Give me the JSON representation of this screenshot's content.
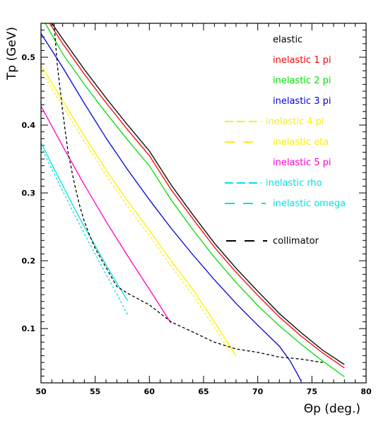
{
  "chart_data": {
    "type": "line",
    "xlabel": "Θp (deg.)",
    "ylabel": "Tp (GeV)",
    "xlim": [
      50,
      80
    ],
    "ylim": [
      0.02,
      0.55
    ],
    "xticks": [
      "50",
      "55",
      "60",
      "65",
      "70",
      "75",
      "80"
    ],
    "yticks": [
      "0.1",
      "0.2",
      "0.3",
      "0.4",
      "0.5"
    ],
    "legend_placement": "top-right",
    "series": [
      {
        "name": "elastic",
        "color": "#000000",
        "dash": "solid",
        "x": [
          51.0,
          52,
          54,
          56,
          58,
          60,
          62,
          64,
          66,
          68,
          70,
          72,
          74,
          76,
          78
        ],
        "y": [
          0.55,
          0.527,
          0.482,
          0.44,
          0.4,
          0.362,
          0.312,
          0.268,
          0.226,
          0.189,
          0.155,
          0.122,
          0.094,
          0.068,
          0.047
        ]
      },
      {
        "name": "inelastic 1 pi",
        "color": "#ff0000",
        "dash": "solid",
        "x": [
          50.8,
          52,
          54,
          56,
          58,
          60,
          62,
          64,
          66,
          68,
          70,
          72,
          74,
          76,
          78
        ],
        "y": [
          0.55,
          0.52,
          0.475,
          0.433,
          0.393,
          0.355,
          0.305,
          0.262,
          0.22,
          0.183,
          0.149,
          0.117,
          0.089,
          0.064,
          0.042
        ]
      },
      {
        "name": "inelastic 2 pi",
        "color": "#00e000",
        "dash": "solid",
        "x": [
          50.4,
          52,
          54,
          56,
          58,
          60,
          62,
          64,
          66,
          68,
          70,
          72,
          74,
          76,
          78
        ],
        "y": [
          0.55,
          0.505,
          0.46,
          0.418,
          0.378,
          0.34,
          0.29,
          0.246,
          0.205,
          0.168,
          0.134,
          0.104,
          0.077,
          0.052,
          0.029
        ]
      },
      {
        "name": "inelastic 3 pi",
        "color": "#0000dd",
        "dash": "solid",
        "x": [
          50,
          52,
          54,
          56,
          58,
          60,
          62,
          64,
          66,
          68,
          70,
          72,
          73,
          74
        ],
        "y": [
          0.535,
          0.485,
          0.432,
          0.381,
          0.334,
          0.29,
          0.248,
          0.209,
          0.172,
          0.137,
          0.105,
          0.074,
          0.052,
          0.023
        ]
      },
      {
        "name": "inelastic 4 pi",
        "color": "#ffee00",
        "dash": "solid",
        "x": [
          50,
          52,
          54,
          56,
          58,
          60,
          62,
          64,
          66,
          68
        ],
        "y": [
          0.488,
          0.436,
          0.384,
          0.334,
          0.288,
          0.245,
          0.2,
          0.158,
          0.11,
          0.06
        ]
      },
      {
        "name": "inelastic  eta",
        "color": "#ffee00",
        "dash": "dashed",
        "x": [
          50,
          52,
          54,
          56,
          58,
          60,
          62,
          64,
          66,
          67.5
        ],
        "y": [
          0.48,
          0.428,
          0.376,
          0.326,
          0.28,
          0.237,
          0.192,
          0.15,
          0.102,
          0.065
        ]
      },
      {
        "name": "inelastic 5 pi",
        "color": "#ff00cc",
        "dash": "solid",
        "x": [
          50,
          52,
          54,
          56,
          58,
          60,
          62
        ],
        "y": [
          0.428,
          0.369,
          0.312,
          0.258,
          0.207,
          0.158,
          0.108
        ]
      },
      {
        "name": "inelastic rho",
        "color": "#00e0e0",
        "dash": "solid",
        "x": [
          50,
          51,
          52,
          53,
          54,
          55,
          56,
          57,
          58
        ],
        "y": [
          0.374,
          0.342,
          0.311,
          0.28,
          0.25,
          0.222,
          0.194,
          0.167,
          0.141
        ]
      },
      {
        "name": "inelastic omega",
        "color": "#00e0e0",
        "dash": "dashed",
        "x": [
          50,
          51,
          52,
          53,
          54,
          55,
          56,
          57,
          58
        ],
        "y": [
          0.368,
          0.335,
          0.303,
          0.271,
          0.24,
          0.21,
          0.18,
          0.151,
          0.12
        ]
      },
      {
        "name": "collimator",
        "color": "#000000",
        "dash": "dashed",
        "x": [
          51.2,
          51.5,
          52,
          52.5,
          53,
          53.5,
          54,
          54.5,
          55,
          56,
          57,
          58,
          60,
          62,
          64,
          66,
          68,
          70,
          72,
          74,
          76
        ],
        "y": [
          0.55,
          0.49,
          0.42,
          0.36,
          0.32,
          0.285,
          0.258,
          0.237,
          0.218,
          0.19,
          0.162,
          0.152,
          0.135,
          0.11,
          0.095,
          0.08,
          0.07,
          0.065,
          0.058,
          0.055,
          0.05
        ]
      }
    ]
  }
}
